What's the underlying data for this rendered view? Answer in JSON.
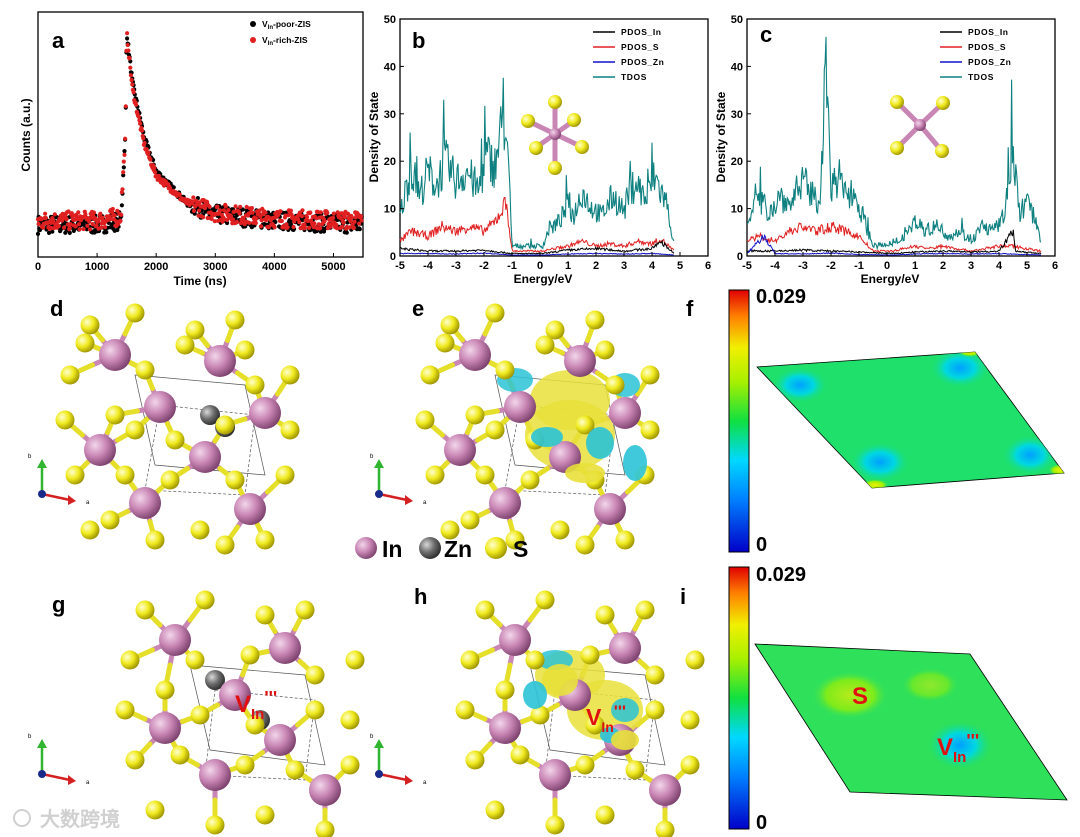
{
  "panels": {
    "a": "a",
    "b": "b",
    "c": "c",
    "d": "d",
    "e": "e",
    "f": "f",
    "g": "g",
    "h": "h",
    "i": "i"
  },
  "colors": {
    "in_atom": "#c986b5",
    "zn_atom": "#6e6e6e",
    "s_atom": "#f0ea1e",
    "poor_series": "#000000",
    "rich_series": "#e02020",
    "pdos_in": "#000000",
    "pdos_s": "#e02020",
    "pdos_zn": "#1010c8",
    "tdos": "#0f8080",
    "charge_yellow": "#e8e03a",
    "charge_cyan": "#2bc3d6"
  },
  "chart_data": [
    {
      "panel": "a",
      "type": "scatter",
      "title": "",
      "xlabel": "Time (ns)",
      "ylabel": "Counts (a.u.)",
      "xlim": [
        0,
        5500
      ],
      "xticks": [
        "0",
        "1000",
        "2000",
        "3000",
        "4000",
        "5000"
      ],
      "series": [
        {
          "name_base": "V",
          "name_sub": "In",
          "name_rest": "-poor-ZIS",
          "color": "#000000",
          "x": [
            0,
            1000,
            1400,
            1480,
            1500,
            1600,
            1800,
            2000,
            2500,
            3000,
            4000,
            5500
          ],
          "y": [
            0.06,
            0.06,
            0.08,
            0.5,
            1.0,
            0.75,
            0.48,
            0.32,
            0.17,
            0.11,
            0.08,
            0.06
          ]
        },
        {
          "name_base": "V",
          "name_sub": "In",
          "name_rest": "-rich-ZIS",
          "color": "#e02020",
          "x": [
            0,
            1000,
            1400,
            1480,
            1500,
            1600,
            1800,
            2000,
            2500,
            3000,
            4000,
            5500
          ],
          "y": [
            0.08,
            0.08,
            0.1,
            0.5,
            1.0,
            0.72,
            0.45,
            0.3,
            0.17,
            0.12,
            0.09,
            0.08
          ]
        }
      ]
    },
    {
      "panel": "b",
      "type": "line",
      "xlabel": "Energy/eV",
      "ylabel": "Density of State",
      "xlim": [
        -5,
        6
      ],
      "ylim": [
        0,
        50
      ],
      "xticks": [
        "-5",
        "-4",
        "-3",
        "-2",
        "-1",
        "0",
        "1",
        "2",
        "3",
        "4",
        "5",
        "6"
      ],
      "yticks": [
        "0",
        "10",
        "20",
        "30",
        "40",
        "50"
      ],
      "legend": [
        "PDOS_In",
        "PDOS_S",
        "PDOS_Zn",
        "TDOS"
      ],
      "series": [
        {
          "name": "TDOS",
          "color": "#0f8080",
          "x": [
            -5,
            -4.6,
            -4.3,
            -4.0,
            -3.7,
            -3.4,
            -3.0,
            -2.6,
            -2.2,
            -1.9,
            -1.6,
            -1.3,
            -1.1,
            -1.0,
            0.1,
            0.3,
            0.7,
            1.0,
            1.2,
            1.5,
            1.8,
            2.2,
            2.6,
            3.0,
            3.4,
            3.8,
            4.1,
            4.3,
            4.5,
            4.7,
            4.8
          ],
          "y": [
            8,
            18,
            12,
            17,
            14,
            19,
            15,
            17,
            13,
            20,
            18,
            28,
            15,
            2,
            2,
            5,
            7,
            10,
            8,
            13,
            10,
            8,
            12,
            9,
            15,
            11,
            16,
            13,
            11,
            5,
            2
          ]
        },
        {
          "name": "PDOS_S",
          "color": "#e02020",
          "x": [
            -5,
            -4.6,
            -4.0,
            -3.5,
            -3.0,
            -2.5,
            -2.0,
            -1.6,
            -1.2,
            -1.0,
            0.1,
            0.5,
            1.0,
            1.5,
            2.0,
            2.5,
            3.0,
            3.5,
            4.0,
            4.3,
            4.6,
            4.8
          ],
          "y": [
            3,
            5,
            4,
            6,
            5,
            6,
            5,
            7,
            11,
            1,
            1,
            1.5,
            2,
            3,
            2,
            2.5,
            2,
            3,
            2.5,
            3.5,
            2,
            1
          ]
        },
        {
          "name": "PDOS_In",
          "color": "#000000",
          "x": [
            -5,
            -4.0,
            -3.0,
            -2.0,
            -1.0,
            0.1,
            1.0,
            2.0,
            3.0,
            4.0,
            4.3,
            4.8
          ],
          "y": [
            1.5,
            1,
            1,
            1.2,
            0.5,
            0.5,
            1.2,
            1.5,
            1,
            1.5,
            3,
            0.5
          ]
        },
        {
          "name": "PDOS_Zn",
          "color": "#1010c8",
          "x": [
            -5,
            -4.0,
            -3.0,
            -2.0,
            -1.0,
            0.1,
            1.0,
            2.0,
            3.0,
            4.0,
            4.8
          ],
          "y": [
            0.5,
            0.5,
            0.4,
            0.6,
            0.2,
            0.2,
            0.4,
            0.5,
            0.4,
            0.5,
            0.2
          ]
        }
      ]
    },
    {
      "panel": "c",
      "type": "line",
      "xlabel": "Energy/eV",
      "ylabel": "Density of State",
      "xlim": [
        -5,
        6
      ],
      "ylim": [
        0,
        50
      ],
      "xticks": [
        "-5",
        "-4",
        "-3",
        "-2",
        "-1",
        "0",
        "1",
        "2",
        "3",
        "4",
        "5",
        "6"
      ],
      "yticks": [
        "0",
        "10",
        "20",
        "30",
        "40",
        "50"
      ],
      "legend": [
        "PDOS_In",
        "PDOS_S",
        "PDOS_Zn",
        "TDOS"
      ],
      "series": [
        {
          "name": "TDOS",
          "color": "#0f8080",
          "x": [
            -5,
            -4.6,
            -4.2,
            -3.8,
            -3.4,
            -3.0,
            -2.7,
            -2.4,
            -2.2,
            -2.0,
            -1.7,
            -1.4,
            -1.1,
            -0.8,
            -0.5,
            0.2,
            0.6,
            1.0,
            1.4,
            1.8,
            2.2,
            2.6,
            3.0,
            3.4,
            3.8,
            4.2,
            4.5,
            4.7,
            5.0,
            5.3,
            5.5
          ],
          "y": [
            8,
            11,
            9,
            12,
            10,
            15,
            12,
            11,
            38,
            13,
            14,
            13,
            12,
            7,
            2,
            2,
            4,
            7,
            5,
            6,
            4,
            5,
            3,
            6,
            5,
            8,
            23,
            9,
            10,
            8,
            3
          ]
        },
        {
          "name": "PDOS_S",
          "color": "#e02020",
          "x": [
            -5,
            -4.5,
            -4.0,
            -3.5,
            -3.0,
            -2.5,
            -2.0,
            -1.5,
            -1.0,
            -0.5,
            0.2,
            1.0,
            1.5,
            2.0,
            2.5,
            3.0,
            3.5,
            4.0,
            4.5,
            5.0,
            5.5
          ],
          "y": [
            3,
            4,
            3,
            5,
            6,
            5,
            6,
            5,
            4,
            1,
            1,
            2,
            1.5,
            2,
            1.5,
            1,
            1.5,
            2,
            2,
            1.5,
            1
          ]
        },
        {
          "name": "PDOS_In",
          "color": "#000000",
          "x": [
            -5,
            -4.0,
            -3.0,
            -2.0,
            -1.0,
            0.2,
            1.0,
            2.0,
            3.0,
            4.0,
            4.5,
            4.6,
            5.5
          ],
          "y": [
            1,
            1,
            1.2,
            1,
            0.8,
            0.5,
            0.8,
            1,
            0.8,
            1,
            5,
            1,
            0.5
          ]
        },
        {
          "name": "PDOS_Zn",
          "color": "#1010c8",
          "x": [
            -5,
            -4.4,
            -4.0,
            -3.0,
            -2.0,
            -1.0,
            0.2,
            1.0,
            2.0,
            3.0,
            4.0,
            5.5
          ],
          "y": [
            0.5,
            4,
            0.5,
            0.4,
            0.6,
            0.3,
            0.2,
            0.4,
            0.5,
            0.4,
            0.5,
            0.2
          ]
        }
      ]
    },
    {
      "panel": "f",
      "type": "heatmap",
      "colorbar_max": "0.029",
      "colorbar_min": "0",
      "labels": []
    },
    {
      "panel": "i",
      "type": "heatmap",
      "colorbar_max": "0.029",
      "colorbar_min": "0",
      "labels": [
        "S",
        "V_In'''"
      ]
    }
  ],
  "legend_atoms": {
    "in": "In",
    "zn": "Zn",
    "s": "S"
  },
  "defect_label": {
    "base": "V",
    "sub": "In",
    "sup": "'''"
  },
  "s_label": "S",
  "axes_indicator": {
    "b": "b",
    "a": "a"
  },
  "watermark": "大数跨境"
}
